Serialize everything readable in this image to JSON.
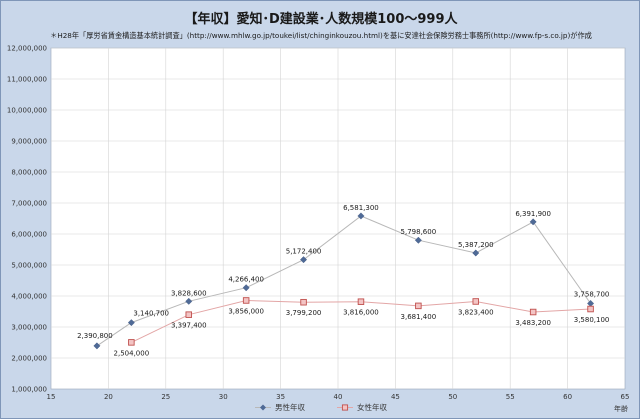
{
  "chart_data": {
    "type": "line",
    "title": "【年収】愛知･D建設業･人数規模100～999人",
    "subtitle": "＊H28年「厚労省賃金構造基本統計調査」(http://www.mhlw.go.jp/toukei/list/chinginkouzou.html)を基に安達社会保険労務士事務所(http://www.fp-s.co.jp)が作成",
    "xlabel": "年齢",
    "ylabel": "",
    "xlim": [
      15,
      65
    ],
    "ylim": [
      1000000,
      12000000
    ],
    "x_ticks": [
      15,
      20,
      25,
      30,
      35,
      40,
      45,
      50,
      55,
      60,
      65
    ],
    "y_ticks": [
      1000000,
      2000000,
      3000000,
      4000000,
      5000000,
      6000000,
      7000000,
      8000000,
      9000000,
      10000000,
      11000000,
      12000000
    ],
    "y_tick_labels": [
      "1,000,000",
      "2,000,000",
      "3,000,000",
      "4,000,000",
      "5,000,000",
      "6,000,000",
      "7,000,000",
      "8,000,000",
      "9,000,000",
      "10,000,000",
      "11,000,000",
      "12,000,000"
    ],
    "grid": true,
    "legend_position": "bottom",
    "series": [
      {
        "name": "男性年収",
        "color": "#4f6a96",
        "line_color": "#b8b8b8",
        "marker": "diamond",
        "x": [
          19,
          22,
          27,
          32,
          37,
          42,
          47,
          52,
          57,
          62
        ],
        "values": [
          2390800,
          3140700,
          3828600,
          4266400,
          5172400,
          6581300,
          5798600,
          5387200,
          6391900,
          3758700
        ],
        "labels": [
          "2,390,800",
          "3,140,700",
          "3,828,600",
          "4,266,400",
          "5,172,400",
          "6,581,300",
          "5,798,600",
          "5,387,200",
          "6,391,900",
          "3,758,700"
        ]
      },
      {
        "name": "女性年収",
        "color": "#d98a8a",
        "line_color": "#e3a6a6",
        "marker": "square",
        "x": [
          22,
          27,
          32,
          37,
          42,
          47,
          52,
          57,
          62
        ],
        "values": [
          2504000,
          3397400,
          3856000,
          3799200,
          3816000,
          3681400,
          3823400,
          3483200,
          3580100
        ],
        "labels": [
          "2,504,000",
          "3,397,400",
          "3,856,000",
          "3,799,200",
          "3,816,000",
          "3,681,400",
          "3,823,400",
          "3,483,200",
          "3,580,100"
        ]
      }
    ]
  }
}
